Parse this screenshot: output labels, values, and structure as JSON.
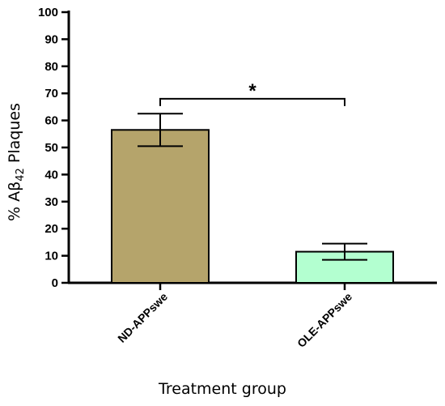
{
  "chart_data": {
    "type": "bar",
    "categories": [
      "ND-APPswe",
      "OLE-APPswe"
    ],
    "values": [
      56.5,
      11.5
    ],
    "error": [
      6,
      3
    ],
    "colors": [
      "#b5a46b",
      "#b3ffd0"
    ],
    "xlabel": "Treatment group",
    "ylabel": {
      "main": "% A",
      "beta": "β",
      "sub": "42",
      "rest": " Plaques"
    },
    "ylim": [
      0,
      100
    ],
    "yticks": [
      0,
      10,
      20,
      30,
      40,
      50,
      60,
      70,
      80,
      90,
      100
    ],
    "significance": {
      "label": "*",
      "between": [
        0,
        1
      ],
      "y": 68
    }
  }
}
